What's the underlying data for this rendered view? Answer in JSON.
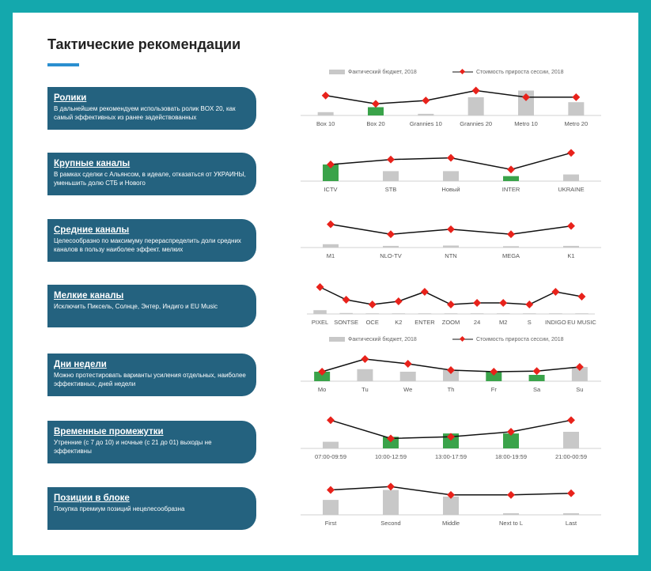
{
  "page": {
    "title": "Тактические рекомендации",
    "colors": {
      "frame": "#14a8ad",
      "card": "#24627f",
      "accent": "#2a8fd0",
      "bar_gray": "#c8c8c8",
      "bar_green": "#3aa34a",
      "marker": "#e8221b",
      "line": "#111111"
    }
  },
  "legend": {
    "bar_label": "Фактический бюджет, 2018",
    "line_label": "Стоимость прироста сессии, 2018"
  },
  "cards": [
    {
      "heading": "Ролики",
      "text": "В дальнейшем рекомендуем использовать ролик BOX 20, как самый эффективных из ранее задействованных"
    },
    {
      "heading": "Крупные каналы",
      "text": "В рамках сделки с Альянсом, в идеале, отказаться от УКРАИНЫ, уменьшить долю СТБ и Нового"
    },
    {
      "heading": "Средние каналы",
      "text": "Целесообразно по максимуму перераспределить доли средних каналов в пользу наиболее эффект. мелких"
    },
    {
      "heading": "Мелкие каналы",
      "text": "Исключить Пиксель, Солнце, Энтер, Индиго и  EU Music"
    },
    {
      "heading": "Дни недели",
      "text": "Можно протестировать варианты усиления отдельных, наиболее эффективных, дней недели"
    },
    {
      "heading": "Временные промежутки",
      "text": "Утренние (с 7 до 10) и ночные (с 21 до 01) выходы не эффективны"
    },
    {
      "heading": "Позиции в блоке",
      "text": "Покупка премиум позиций нецелесообразна"
    }
  ],
  "chart_data": [
    {
      "type": "bar",
      "name": "Ролики",
      "categories": [
        "Box 10",
        "Box 20",
        "Grannies 10",
        "Grannies 20",
        "Metro 10",
        "Metro 20"
      ],
      "values": [
        0.1,
        0.25,
        0.05,
        0.55,
        0.75,
        0.4
      ],
      "highlight": [
        false,
        true,
        false,
        false,
        false,
        false
      ],
      "line": [
        0.6,
        0.35,
        0.45,
        0.75,
        0.55,
        0.55
      ]
    },
    {
      "type": "bar",
      "name": "Крупные каналы",
      "categories": [
        "ICTV",
        "STB",
        "Новый",
        "INTER",
        "UKRAINE"
      ],
      "values": [
        0.5,
        0.3,
        0.3,
        0.15,
        0.2
      ],
      "highlight": [
        true,
        false,
        false,
        true,
        false
      ],
      "line": [
        0.5,
        0.65,
        0.7,
        0.35,
        0.85
      ]
    },
    {
      "type": "bar",
      "name": "Средние каналы",
      "categories": [
        "M1",
        "NLO-TV",
        "NTN",
        "MEGA",
        "K1"
      ],
      "values": [
        0.1,
        0.05,
        0.06,
        0.04,
        0.05
      ],
      "highlight": [
        false,
        false,
        false,
        false,
        false
      ],
      "line": [
        0.7,
        0.4,
        0.55,
        0.4,
        0.65
      ]
    },
    {
      "type": "bar",
      "name": "Мелкие каналы",
      "categories": [
        "PIXEL",
        "SONTSE",
        "OCE",
        "K2",
        "ENTER",
        "ZOOM",
        "24",
        "M2",
        "S",
        "INDIGO",
        "EU MUSIC"
      ],
      "values": [
        0.12,
        0.03,
        0.02,
        0.02,
        0.02,
        0.02,
        0.02,
        0.02,
        0.02,
        0.02,
        0.02
      ],
      "highlight": [
        false,
        false,
        false,
        false,
        false,
        false,
        false,
        false,
        false,
        false,
        false
      ],
      "line": [
        0.85,
        0.45,
        0.3,
        0.4,
        0.7,
        0.3,
        0.35,
        0.35,
        0.3,
        0.7,
        0.55
      ]
    },
    {
      "type": "bar",
      "name": "Дни недели",
      "categories": [
        "Mo",
        "Tu",
        "We",
        "Th",
        "Fr",
        "Sa",
        "Su"
      ],
      "values": [
        0.3,
        0.38,
        0.3,
        0.35,
        0.3,
        0.2,
        0.45
      ],
      "highlight": [
        true,
        false,
        false,
        false,
        true,
        true,
        false
      ],
      "line": [
        0.3,
        0.7,
        0.55,
        0.35,
        0.3,
        0.32,
        0.45
      ]
    },
    {
      "type": "bar",
      "name": "Временные промежутки",
      "categories": [
        "07:00-09:59",
        "10:00-12:59",
        "13:00-17:59",
        "18:00-19:59",
        "21:00-00:59"
      ],
      "values": [
        0.2,
        0.35,
        0.45,
        0.45,
        0.5
      ],
      "highlight": [
        false,
        true,
        true,
        true,
        false
      ],
      "line": [
        0.85,
        0.3,
        0.35,
        0.5,
        0.85
      ]
    },
    {
      "type": "bar",
      "name": "Позиции в блоке",
      "categories": [
        "First",
        "Second",
        "Middle",
        "Next to L",
        "Last"
      ],
      "values": [
        0.45,
        0.75,
        0.55,
        0.05,
        0.05
      ],
      "highlight": [
        false,
        false,
        false,
        false,
        false
      ],
      "line": [
        0.75,
        0.85,
        0.6,
        0.6,
        0.65
      ]
    }
  ]
}
